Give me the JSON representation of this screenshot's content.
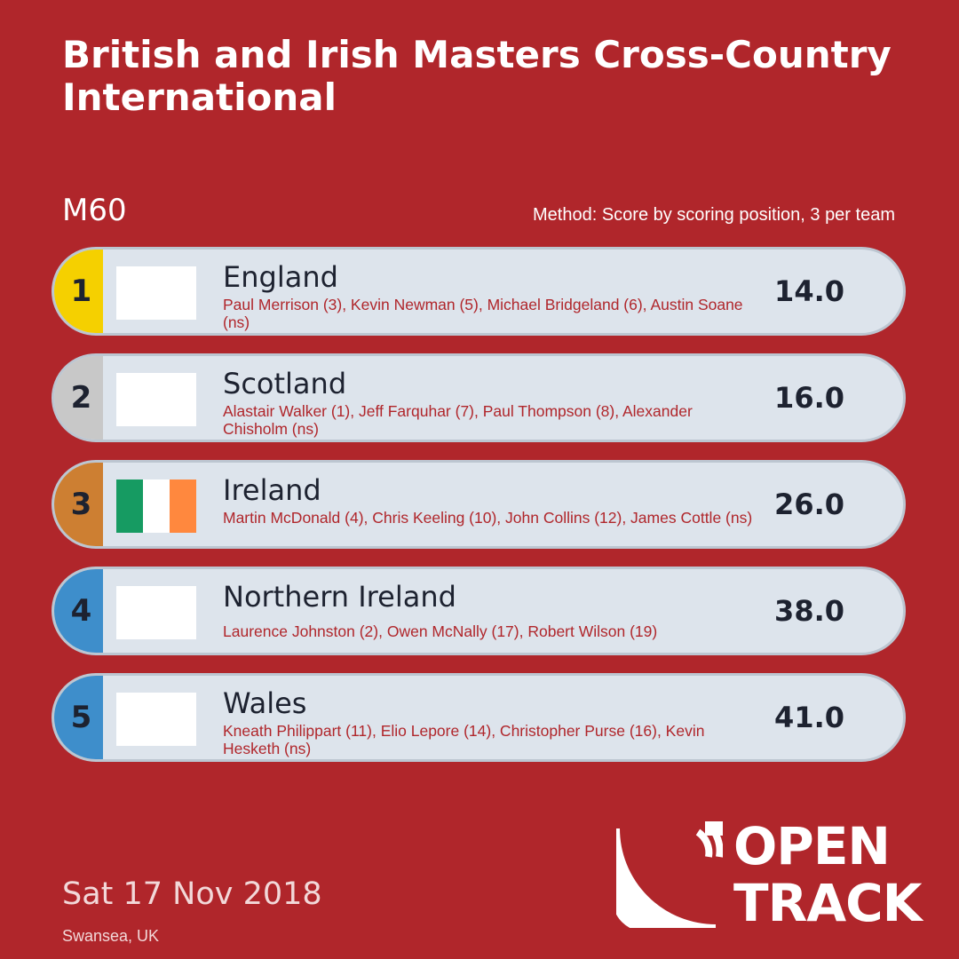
{
  "header": {
    "title": "British and Irish Masters Cross-Country International",
    "category": "M60",
    "method": "Method: Score by scoring position, 3 per team"
  },
  "results": [
    {
      "rank": "1",
      "rank_color": "#f5d000",
      "team": "England",
      "members": "Paul Merrison (3), Kevin Newman (5), Michael Bridgeland (6), Austin Soane (ns)",
      "score": "14.0",
      "flag": "blank"
    },
    {
      "rank": "2",
      "rank_color": "#c8c8c8",
      "team": "Scotland",
      "members": "Alastair Walker (1), Jeff Farquhar (7), Paul Thompson (8), Alexander Chisholm (ns)",
      "score": "16.0",
      "flag": "blank"
    },
    {
      "rank": "3",
      "rank_color": "#cd7f32",
      "team": "Ireland",
      "members": "Martin McDonald (4), Chris Keeling (10), John Collins (12), James Cottle (ns)",
      "score": "26.0",
      "flag": "ireland"
    },
    {
      "rank": "4",
      "rank_color": "#3e8ecb",
      "team": "Northern Ireland",
      "members": "Laurence Johnston (2), Owen McNally (17), Robert Wilson (19)",
      "score": "38.0",
      "flag": "blank"
    },
    {
      "rank": "5",
      "rank_color": "#3e8ecb",
      "team": "Wales",
      "members": "Kneath Philippart (11), Elio Lepore (14), Christopher Purse (16), Kevin Hesketh (ns)",
      "score": "41.0",
      "flag": "blank"
    }
  ],
  "flag_colors": {
    "ireland": [
      "#169b62",
      "#ffffff",
      "#ff883e"
    ]
  },
  "footer": {
    "date": "Sat 17 Nov 2018",
    "venue": "Swansea, UK"
  },
  "brand": {
    "line1": "OPEN",
    "line2": "TRACK",
    "logo_icon": "opentrack-arcs-icon"
  },
  "colors": {
    "background": "#b0262b",
    "card": "#dde4ec",
    "accent_text": "#b0262b"
  }
}
